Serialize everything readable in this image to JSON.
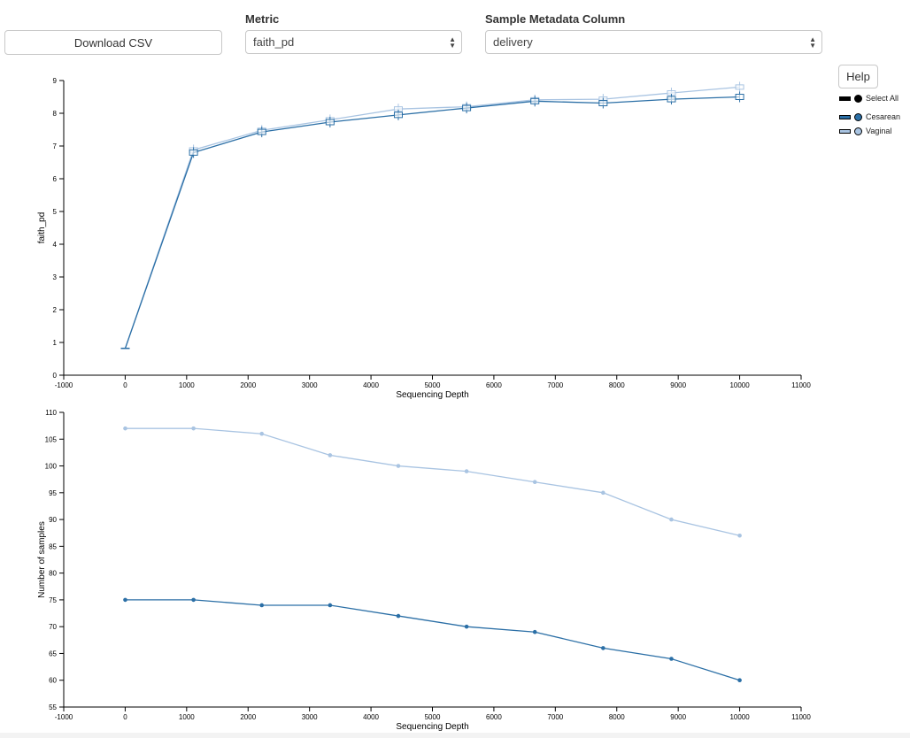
{
  "controls": {
    "download_label": "Download CSV",
    "metric_label": "Metric",
    "metric_value": "faith_pd",
    "column_label": "Sample Metadata Column",
    "column_value": "delivery"
  },
  "legend": {
    "help_label": "Help",
    "select_all_label": "Select All",
    "items": [
      {
        "name": "Cesarean",
        "color": "#2b6fa6"
      },
      {
        "name": "Vaginal",
        "color": "#a9c4e2"
      }
    ]
  },
  "chart_data": [
    {
      "type": "line",
      "xlabel": "Sequencing Depth",
      "ylabel": "faith_pd",
      "xlim": [
        -1000,
        11000
      ],
      "ylim": [
        0,
        9
      ],
      "xticks": [
        -1000,
        0,
        1000,
        2000,
        3000,
        4000,
        5000,
        6000,
        7000,
        8000,
        9000,
        10000,
        11000
      ],
      "yticks": [
        0,
        1,
        2,
        3,
        4,
        5,
        6,
        7,
        8,
        9
      ],
      "x": [
        1,
        1112,
        2223,
        3334,
        4445,
        5556,
        6667,
        7778,
        8889,
        10000
      ],
      "series": [
        {
          "name": "Cesarean",
          "color": "#2b6fa6",
          "values": [
            0.82,
            6.8,
            7.43,
            7.73,
            7.95,
            8.16,
            8.37,
            8.31,
            8.43,
            8.5
          ]
        },
        {
          "name": "Vaginal",
          "color": "#a9c4e2",
          "values": [
            0.82,
            6.88,
            7.48,
            7.8,
            8.13,
            8.2,
            8.41,
            8.43,
            8.62,
            8.8
          ]
        }
      ]
    },
    {
      "type": "line",
      "xlabel": "Sequencing Depth",
      "ylabel": "Number of samples",
      "xlim": [
        -1000,
        11000
      ],
      "ylim": [
        55,
        110
      ],
      "xticks": [
        -1000,
        0,
        1000,
        2000,
        3000,
        4000,
        5000,
        6000,
        7000,
        8000,
        9000,
        10000,
        11000
      ],
      "yticks": [
        55,
        60,
        65,
        70,
        75,
        80,
        85,
        90,
        95,
        100,
        105,
        110
      ],
      "x": [
        1,
        1112,
        2223,
        3334,
        4445,
        5556,
        6667,
        7778,
        8889,
        10000
      ],
      "series": [
        {
          "name": "Cesarean",
          "color": "#2b6fa6",
          "values": [
            75,
            75,
            74,
            74,
            72,
            70,
            69,
            66,
            64,
            60
          ]
        },
        {
          "name": "Vaginal",
          "color": "#a9c4e2",
          "values": [
            107,
            107,
            106,
            102,
            100,
            99,
            97,
            95,
            90,
            87
          ]
        }
      ]
    }
  ]
}
